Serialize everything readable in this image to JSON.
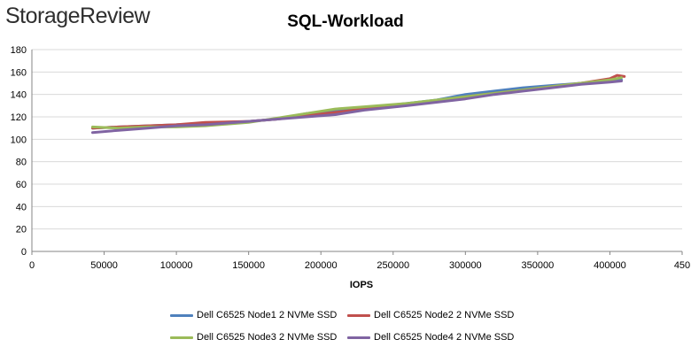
{
  "brand": "StorageReview",
  "chart_data": {
    "type": "line",
    "title": "SQL-Workload",
    "xlabel": "IOPS",
    "ylabel": "",
    "xlim": [
      0,
      450000
    ],
    "ylim": [
      0,
      180
    ],
    "x_ticks": [
      "0",
      "50000",
      "100000",
      "150000",
      "200000",
      "250000",
      "300000",
      "350000",
      "400000",
      "450"
    ],
    "y_ticks": [
      "0",
      "20",
      "40",
      "60",
      "80",
      "100",
      "120",
      "140",
      "160",
      "180"
    ],
    "grid": "horizontal",
    "legend_position": "bottom",
    "series": [
      {
        "name": "Dell C6525 Node1 2 NVMe SSD",
        "color": "#4F81BD",
        "points": [
          [
            42000,
            110
          ],
          [
            60000,
            111
          ],
          [
            80000,
            112
          ],
          [
            100000,
            113
          ],
          [
            120000,
            114
          ],
          [
            150000,
            116
          ],
          [
            170000,
            118
          ],
          [
            190000,
            123
          ],
          [
            210000,
            126
          ],
          [
            230000,
            128
          ],
          [
            260000,
            132
          ],
          [
            280000,
            135
          ],
          [
            300000,
            140
          ],
          [
            320000,
            143
          ],
          [
            340000,
            146
          ],
          [
            360000,
            148
          ],
          [
            380000,
            150
          ],
          [
            400000,
            152
          ],
          [
            408000,
            153
          ]
        ]
      },
      {
        "name": "Dell C6525 Node2 2 NVMe SSD",
        "color": "#C0504D",
        "points": [
          [
            42000,
            110
          ],
          [
            60000,
            111
          ],
          [
            80000,
            112
          ],
          [
            100000,
            113
          ],
          [
            120000,
            115
          ],
          [
            150000,
            116
          ],
          [
            170000,
            118
          ],
          [
            190000,
            121
          ],
          [
            210000,
            124
          ],
          [
            230000,
            127
          ],
          [
            260000,
            131
          ],
          [
            280000,
            134
          ],
          [
            300000,
            138
          ],
          [
            320000,
            141
          ],
          [
            340000,
            144
          ],
          [
            360000,
            147
          ],
          [
            380000,
            150
          ],
          [
            400000,
            154
          ],
          [
            405000,
            157
          ],
          [
            410000,
            156
          ]
        ]
      },
      {
        "name": "Dell C6525 Node3 2 NVMe SSD",
        "color": "#9BBB59",
        "points": [
          [
            42000,
            111
          ],
          [
            60000,
            110
          ],
          [
            80000,
            111
          ],
          [
            100000,
            111
          ],
          [
            120000,
            112
          ],
          [
            150000,
            115
          ],
          [
            170000,
            119
          ],
          [
            190000,
            123
          ],
          [
            210000,
            127
          ],
          [
            230000,
            129
          ],
          [
            260000,
            132
          ],
          [
            280000,
            135
          ],
          [
            300000,
            138
          ],
          [
            320000,
            141
          ],
          [
            340000,
            144
          ],
          [
            360000,
            147
          ],
          [
            380000,
            150
          ],
          [
            400000,
            153
          ],
          [
            408000,
            155
          ]
        ]
      },
      {
        "name": "Dell C6525 Node4 2 NVMe SSD",
        "color": "#8064A2",
        "points": [
          [
            42000,
            106
          ],
          [
            60000,
            108
          ],
          [
            80000,
            110
          ],
          [
            100000,
            112
          ],
          [
            120000,
            113
          ],
          [
            150000,
            116
          ],
          [
            170000,
            118
          ],
          [
            190000,
            120
          ],
          [
            210000,
            122
          ],
          [
            230000,
            126
          ],
          [
            260000,
            130
          ],
          [
            280000,
            133
          ],
          [
            300000,
            136
          ],
          [
            320000,
            140
          ],
          [
            340000,
            143
          ],
          [
            360000,
            146
          ],
          [
            380000,
            149
          ],
          [
            400000,
            151
          ],
          [
            408000,
            152
          ]
        ]
      }
    ]
  }
}
